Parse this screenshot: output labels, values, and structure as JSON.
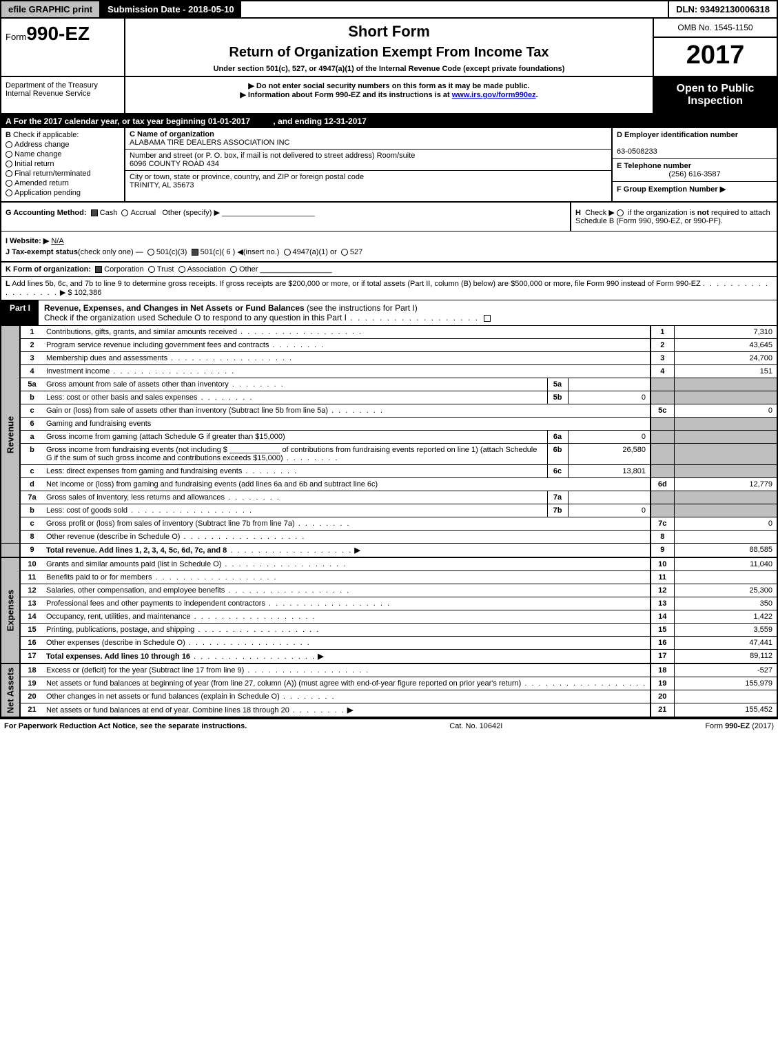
{
  "topbar": {
    "efile": "efile GRAPHIC print",
    "submission": "Submission Date - 2018-05-10",
    "dln": "DLN: 93492130006318"
  },
  "header": {
    "form_prefix": "Form",
    "form_number": "990-EZ",
    "short_form": "Short Form",
    "return_title": "Return of Organization Exempt From Income Tax",
    "under_section": "Under section 501(c), 527, or 4947(a)(1) of the Internal Revenue Code (except private foundations)",
    "omb": "OMB No. 1545-1150",
    "tax_year": "2017",
    "dept": "Department of the Treasury\nInternal Revenue Service",
    "warn1": "▶ Do not enter social security numbers on this form as it may be made public.",
    "warn2_prefix": "▶ Information about Form 990-EZ and its instructions is at ",
    "warn2_link": "www.irs.gov/form990ez",
    "open_inspect": "Open to Public Inspection"
  },
  "line_a": {
    "prefix": "A",
    "text": "For the 2017 calendar year, or tax year beginning 01-01-2017",
    "ending": ", and ending 12-31-2017"
  },
  "b_check": {
    "label": "B",
    "intro": "Check if applicable:",
    "items": [
      "Address change",
      "Name change",
      "Initial return",
      "Final return/terminated",
      "Amended return",
      "Application pending"
    ]
  },
  "c_block": {
    "name_lbl": "C Name of organization",
    "name": "ALABAMA TIRE DEALERS ASSOCIATION INC",
    "street_lbl": "Number and street (or P. O. box, if mail is not delivered to street address)   Room/suite",
    "street": "6096 COUNTY ROAD 434",
    "city_lbl": "City or town, state or province, country, and ZIP or foreign postal code",
    "city": "TRINITY, AL  35673"
  },
  "d_block": {
    "ein_lbl": "D Employer identification number",
    "ein": "63-0508233",
    "phone_lbl": "E Telephone number",
    "phone": "(256) 616-3587",
    "group_lbl": "F Group Exemption Number  ▶"
  },
  "g_line": {
    "label": "G Accounting Method:",
    "cash": "Cash",
    "accrual": "Accrual",
    "other": "Other (specify) ▶",
    "underline": "______________________"
  },
  "h_line": {
    "label": "H",
    "text1": "Check ▶",
    "text2": "if the organization is ",
    "not": "not",
    "text3": " required to attach Schedule B (Form 990, 990-EZ, or 990-PF)."
  },
  "i_line": {
    "label": "I Website: ▶",
    "value": "N/A"
  },
  "j_line": {
    "label": "J Tax-exempt status",
    "suffix": "(check only one) —",
    "opts": [
      "501(c)(3)",
      "501(c)( 6 ) ◀(insert no.)",
      "4947(a)(1) or",
      "527"
    ]
  },
  "k_line": {
    "label": "K Form of organization:",
    "opts": [
      "Corporation",
      "Trust",
      "Association",
      "Other"
    ],
    "underline": "_________________"
  },
  "l_line": {
    "label": "L",
    "text": "Add lines 5b, 6c, and 7b to line 9 to determine gross receipts. If gross receipts are $200,000 or more, or if total assets (Part II, column (B) below) are $500,000 or more, file Form 990 instead of Form 990-EZ",
    "amount_prefix": "▶ $",
    "amount": "102,386"
  },
  "part1": {
    "label": "Part I",
    "title": "Revenue, Expenses, and Changes in Net Assets or Fund Balances",
    "title_suffix": " (see the instructions for Part I)",
    "sub": "Check if the organization used Schedule O to respond to any question in this Part I"
  },
  "side_labels": {
    "revenue": "Revenue",
    "expenses": "Expenses",
    "net_assets": "Net Assets"
  },
  "lines": {
    "l1": {
      "n": "1",
      "d": "Contributions, gifts, grants, and similar amounts received",
      "rn": "1",
      "rv": "7,310"
    },
    "l2": {
      "n": "2",
      "d": "Program service revenue including government fees and contracts",
      "rn": "2",
      "rv": "43,645"
    },
    "l3": {
      "n": "3",
      "d": "Membership dues and assessments",
      "rn": "3",
      "rv": "24,700"
    },
    "l4": {
      "n": "4",
      "d": "Investment income",
      "rn": "4",
      "rv": "151"
    },
    "l5a": {
      "n": "5a",
      "d": "Gross amount from sale of assets other than inventory",
      "sn": "5a",
      "sv": ""
    },
    "l5b": {
      "n": "b",
      "d": "Less: cost or other basis and sales expenses",
      "sn": "5b",
      "sv": "0"
    },
    "l5c": {
      "n": "c",
      "d": "Gain or (loss) from sale of assets other than inventory (Subtract line 5b from line 5a)",
      "rn": "5c",
      "rv": "0"
    },
    "l6": {
      "n": "6",
      "d": "Gaming and fundraising events"
    },
    "l6a": {
      "n": "a",
      "d": "Gross income from gaming (attach Schedule G if greater than $15,000)",
      "sn": "6a",
      "sv": "0"
    },
    "l6b": {
      "n": "b",
      "d": "Gross income from fundraising events (not including $",
      "d2": "of contributions from fundraising events reported on line 1) (attach Schedule G if the sum of such gross income and contributions exceeds $15,000)",
      "sn": "6b",
      "sv": "26,580"
    },
    "l6c": {
      "n": "c",
      "d": "Less: direct expenses from gaming and fundraising events",
      "sn": "6c",
      "sv": "13,801"
    },
    "l6d": {
      "n": "d",
      "d": "Net income or (loss) from gaming and fundraising events (add lines 6a and 6b and subtract line 6c)",
      "rn": "6d",
      "rv": "12,779"
    },
    "l7a": {
      "n": "7a",
      "d": "Gross sales of inventory, less returns and allowances",
      "sn": "7a",
      "sv": ""
    },
    "l7b": {
      "n": "b",
      "d": "Less: cost of goods sold",
      "sn": "7b",
      "sv": "0"
    },
    "l7c": {
      "n": "c",
      "d": "Gross profit or (loss) from sales of inventory (Subtract line 7b from line 7a)",
      "rn": "7c",
      "rv": "0"
    },
    "l8": {
      "n": "8",
      "d": "Other revenue (describe in Schedule O)",
      "rn": "8",
      "rv": ""
    },
    "l9": {
      "n": "9",
      "d": "Total revenue. Add lines 1, 2, 3, 4, 5c, 6d, 7c, and 8",
      "rn": "9",
      "rv": "88,585"
    },
    "l10": {
      "n": "10",
      "d": "Grants and similar amounts paid (list in Schedule O)",
      "rn": "10",
      "rv": "11,040"
    },
    "l11": {
      "n": "11",
      "d": "Benefits paid to or for members",
      "rn": "11",
      "rv": ""
    },
    "l12": {
      "n": "12",
      "d": "Salaries, other compensation, and employee benefits",
      "rn": "12",
      "rv": "25,300"
    },
    "l13": {
      "n": "13",
      "d": "Professional fees and other payments to independent contractors",
      "rn": "13",
      "rv": "350"
    },
    "l14": {
      "n": "14",
      "d": "Occupancy, rent, utilities, and maintenance",
      "rn": "14",
      "rv": "1,422"
    },
    "l15": {
      "n": "15",
      "d": "Printing, publications, postage, and shipping",
      "rn": "15",
      "rv": "3,559"
    },
    "l16": {
      "n": "16",
      "d": "Other expenses (describe in Schedule O)",
      "rn": "16",
      "rv": "47,441"
    },
    "l17": {
      "n": "17",
      "d": "Total expenses. Add lines 10 through 16",
      "rn": "17",
      "rv": "89,112"
    },
    "l18": {
      "n": "18",
      "d": "Excess or (deficit) for the year (Subtract line 17 from line 9)",
      "rn": "18",
      "rv": "-527"
    },
    "l19": {
      "n": "19",
      "d": "Net assets or fund balances at beginning of year (from line 27, column (A)) (must agree with end-of-year figure reported on prior year's return)",
      "rn": "19",
      "rv": "155,979"
    },
    "l20": {
      "n": "20",
      "d": "Other changes in net assets or fund balances (explain in Schedule O)",
      "rn": "20",
      "rv": ""
    },
    "l21": {
      "n": "21",
      "d": "Net assets or fund balances at end of year. Combine lines 18 through 20",
      "rn": "21",
      "rv": "155,452"
    }
  },
  "footer": {
    "left": "For Paperwork Reduction Act Notice, see the separate instructions.",
    "mid": "Cat. No. 10642I",
    "right_prefix": "Form ",
    "right_form": "990-EZ",
    "right_suffix": " (2017)"
  }
}
